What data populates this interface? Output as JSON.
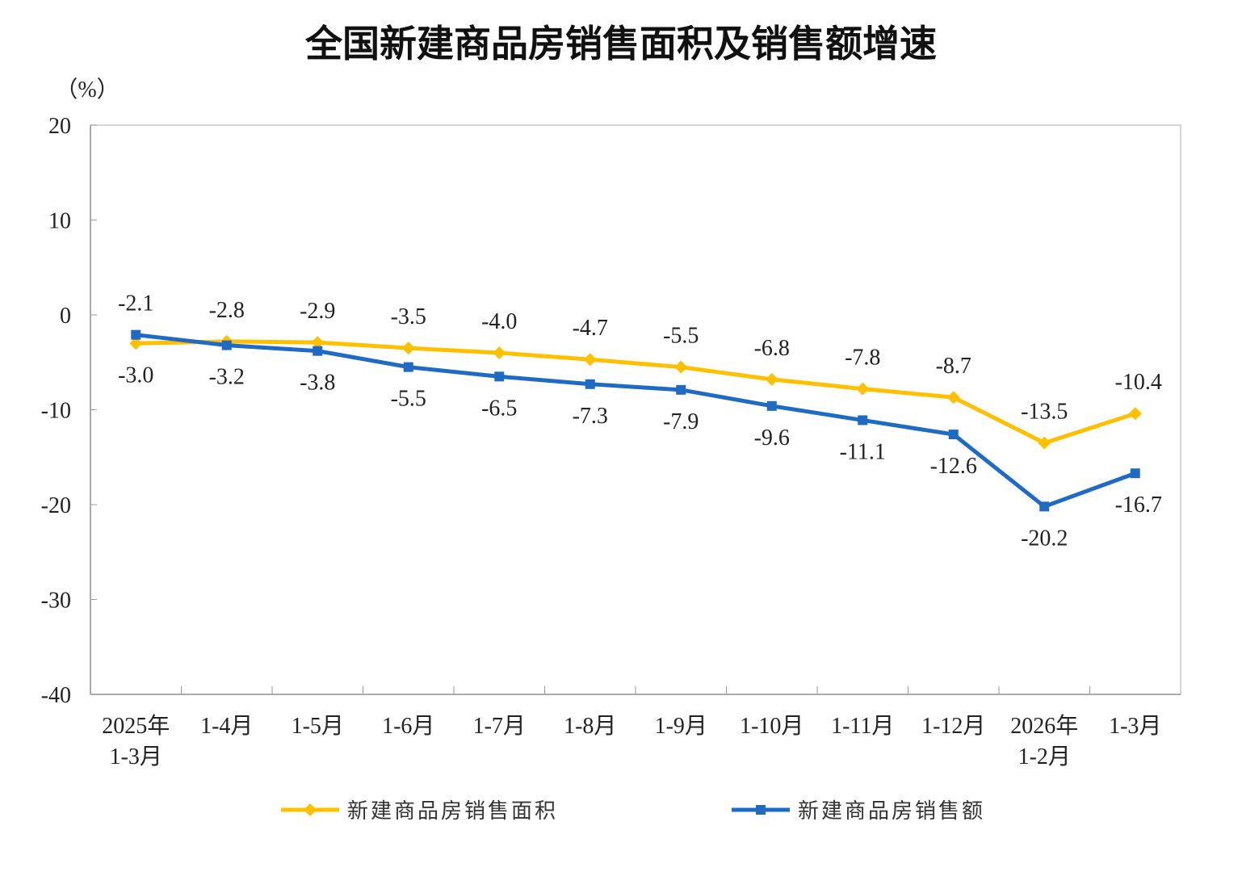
{
  "chart_data": {
    "type": "line",
    "title": "全国新建商品房销售面积及销售额增速",
    "ylabel": "（%）",
    "xlabel": "",
    "ylim": [
      -40,
      20
    ],
    "yticks": [
      20,
      10,
      0,
      -10,
      -20,
      -30,
      -40
    ],
    "grid": false,
    "legend_position": "bottom",
    "categories": [
      "2025年\n1-3月",
      "1-4月",
      "1-5月",
      "1-6月",
      "1-7月",
      "1-8月",
      "1-9月",
      "1-10月",
      "1-11月",
      "1-12月",
      "2026年\n1-2月",
      "1-3月"
    ],
    "series": [
      {
        "name": "新建商品房销售面积",
        "color": "#FFC000",
        "marker": "diamond",
        "values": [
          -3.0,
          -2.8,
          -2.9,
          -3.5,
          -4.0,
          -4.7,
          -5.5,
          -6.8,
          -7.8,
          -8.7,
          -13.5,
          -10.4
        ]
      },
      {
        "name": "新建商品房销售额",
        "color": "#1F6BC4",
        "marker": "square",
        "values": [
          -2.1,
          -3.2,
          -3.8,
          -5.5,
          -6.5,
          -7.3,
          -7.9,
          -9.6,
          -11.1,
          -12.6,
          -20.2,
          -16.7
        ]
      }
    ]
  }
}
